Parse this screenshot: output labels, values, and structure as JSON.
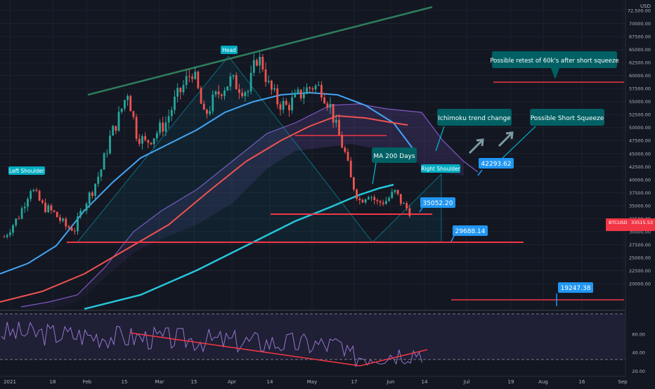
{
  "currency_label": "USD",
  "symbol_tag": "BTCUSD",
  "last_price_label": "33515.53",
  "colors": {
    "background": "#131722",
    "up": "#26a69a",
    "down": "#ef5350",
    "annotation": "#2196f3",
    "label_teal": "#00bcd4",
    "callout_bg": "#006064",
    "rsi": "#7e57c2",
    "trend_red": "#f23645",
    "trend_green": "#1b5e20"
  },
  "annotations": {
    "left_shoulder": "Left Shoulder",
    "head": "Head",
    "right_shoulder": "Right Shoulder",
    "ma200": "MA 200 Days",
    "ichimoku": "Ichimoku trend change",
    "short_squeeze": "Possible Short Squeeze",
    "retest": "Possible retest of 60k's after short squeeze"
  },
  "price_boxes": {
    "p1": "42293.62",
    "p2": "35052.20",
    "p3": "29688.14",
    "p4": "19247.38"
  },
  "chart_data": [
    {
      "type": "candlestick",
      "x_tick_labels": [
        "2021",
        "18",
        "Feb",
        "15",
        "Mar",
        "15",
        "Apr",
        "14",
        "May",
        "17",
        "Jun",
        "14",
        "Jul",
        "19",
        "Aug",
        "16",
        "Sep"
      ],
      "y_axis_labels": [
        "72,500.00",
        "70000.00",
        "67500.00",
        "65000.00",
        "62500.00",
        "60000.00",
        "57500.00",
        "55000.00",
        "52500.00",
        "50000.00",
        "47500.00",
        "45000.00",
        "42500.00",
        "40000.00",
        "37500.00",
        "35000.00",
        "32500.00",
        "30000.00",
        "27500.00",
        "25000.00",
        "22500.00",
        "20000.00"
      ],
      "y_range": [
        17500,
        72500
      ],
      "key_levels": [
        29688.14,
        35052.2,
        42293.62,
        59400,
        19247.38
      ],
      "price_path": [
        [
          0,
          29000
        ],
        [
          5,
          33000
        ],
        [
          9,
          38500
        ],
        [
          13,
          35000
        ],
        [
          17,
          33500
        ],
        [
          21,
          31000
        ],
        [
          24,
          30500
        ],
        [
          27,
          35000
        ],
        [
          30,
          38000
        ],
        [
          33,
          42000
        ],
        [
          36,
          48000
        ],
        [
          39,
          52000
        ],
        [
          42,
          57000
        ],
        [
          45,
          49000
        ],
        [
          48,
          47000
        ],
        [
          51,
          48500
        ],
        [
          55,
          51000
        ],
        [
          58,
          55000
        ],
        [
          61,
          58000
        ],
        [
          64,
          61000
        ],
        [
          66,
          57000
        ],
        [
          68,
          52000
        ],
        [
          71,
          55000
        ],
        [
          74,
          57500
        ],
        [
          77,
          59000
        ],
        [
          80,
          58000
        ],
        [
          83,
          57000
        ],
        [
          86,
          63500
        ],
        [
          88,
          62000
        ],
        [
          90,
          58000
        ],
        [
          93,
          55000
        ],
        [
          96,
          54000
        ],
        [
          99,
          55500
        ],
        [
          102,
          57000
        ],
        [
          105,
          58000
        ],
        [
          108,
          57500
        ],
        [
          111,
          54000
        ],
        [
          113,
          50000
        ],
        [
          116,
          45000
        ],
        [
          118,
          40000
        ],
        [
          121,
          36000
        ],
        [
          124,
          37500
        ],
        [
          127,
          35500
        ],
        [
          130,
          36000
        ],
        [
          133,
          37500
        ],
        [
          136,
          35000
        ],
        [
          138,
          34000
        ]
      ],
      "indicators": [
        "MA 200 Days",
        "Ichimoku Cloud"
      ],
      "legend": "none",
      "grid": true
    },
    {
      "type": "line",
      "name": "RSI",
      "y_tick_labels": [
        "60.00",
        "40.00",
        "20.00"
      ],
      "y_range": [
        15,
        85
      ],
      "bands": [
        70,
        30
      ]
    }
  ]
}
